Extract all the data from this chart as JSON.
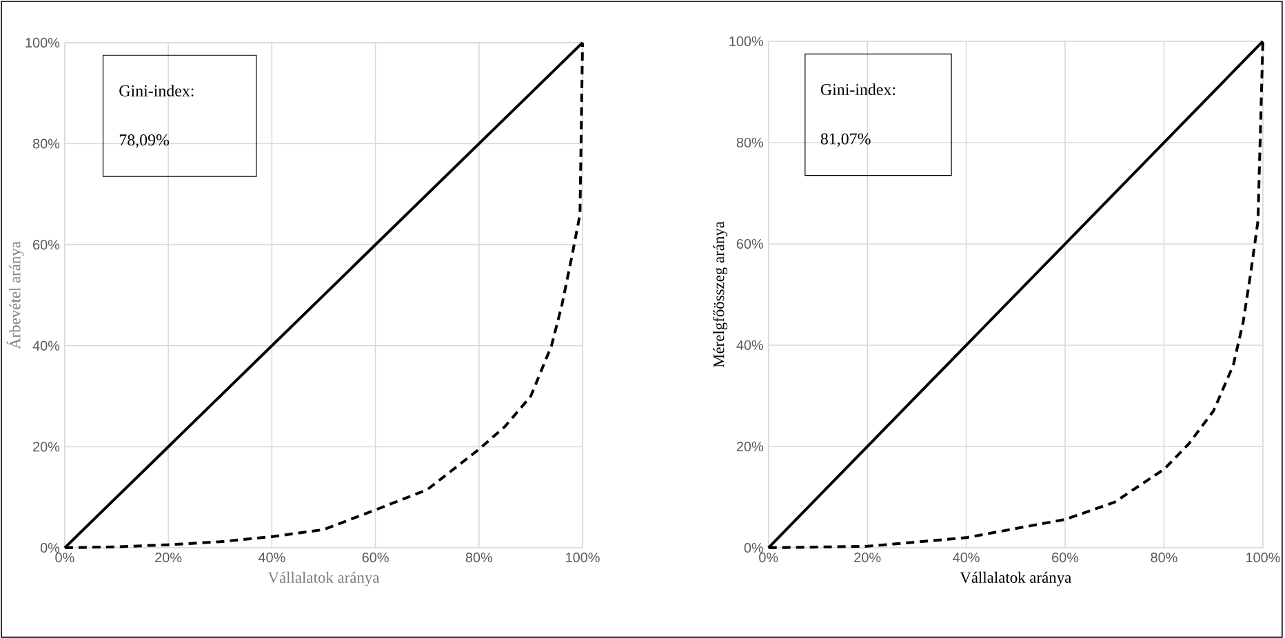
{
  "chart_data": [
    {
      "type": "line",
      "xlabel": "Vállalatok aránya",
      "ylabel": "Árbevétel aránya",
      "annotations": [
        "Gini-index:",
        "78,09%"
      ],
      "xlim": [
        0,
        100
      ],
      "ylim": [
        0,
        100
      ],
      "grid": true,
      "marker": "none",
      "xticks": [
        {
          "value": 0,
          "label": "0%"
        },
        {
          "value": 20,
          "label": "20%"
        },
        {
          "value": 40,
          "label": "40%"
        },
        {
          "value": 60,
          "label": "60%"
        },
        {
          "value": 80,
          "label": "80%"
        },
        {
          "value": 100,
          "label": "100%"
        }
      ],
      "yticks": [
        {
          "value": 0,
          "label": "0%"
        },
        {
          "value": 20,
          "label": "20%"
        },
        {
          "value": 40,
          "label": "40%"
        },
        {
          "value": 60,
          "label": "60%"
        },
        {
          "value": 80,
          "label": "80%"
        },
        {
          "value": 100,
          "label": "100%"
        }
      ],
      "series": [
        {
          "color": "#000000",
          "line_style": "solid",
          "x": [
            0,
            100
          ],
          "values": [
            0,
            100
          ]
        },
        {
          "color": "#000000",
          "line_style": "dashed",
          "x": [
            0,
            10,
            20,
            30,
            40,
            50,
            60,
            70,
            80,
            85,
            90,
            94,
            96,
            98,
            99.5,
            100
          ],
          "values": [
            0,
            0.2,
            0.6,
            1.2,
            2.2,
            3.6,
            7.5,
            11.5,
            19.5,
            24,
            30,
            40,
            48,
            58,
            66,
            100
          ]
        }
      ]
    },
    {
      "type": "line",
      "xlabel": "Vállalatok aránya",
      "ylabel": "Mérelgfőösszeg aránya",
      "annotations": [
        "Gini-index:",
        "81,07%"
      ],
      "xlim": [
        0,
        100
      ],
      "ylim": [
        0,
        100
      ],
      "grid": true,
      "marker": "none",
      "xticks": [
        {
          "value": 0,
          "label": "0%"
        },
        {
          "value": 20,
          "label": "20%"
        },
        {
          "value": 40,
          "label": "40%"
        },
        {
          "value": 60,
          "label": "60%"
        },
        {
          "value": 80,
          "label": "80%"
        },
        {
          "value": 100,
          "label": "100%"
        }
      ],
      "yticks": [
        {
          "value": 0,
          "label": "0%"
        },
        {
          "value": 20,
          "label": "20%"
        },
        {
          "value": 40,
          "label": "40%"
        },
        {
          "value": 60,
          "label": "60%"
        },
        {
          "value": 80,
          "label": "80%"
        },
        {
          "value": 100,
          "label": "100%"
        }
      ],
      "series": [
        {
          "color": "#000000",
          "line_style": "solid",
          "x": [
            0,
            100
          ],
          "values": [
            0,
            100
          ]
        },
        {
          "color": "#000000",
          "line_style": "dashed",
          "x": [
            0,
            20,
            40,
            60,
            70,
            80,
            85,
            90,
            94,
            96,
            97.5,
            99,
            100
          ],
          "values": [
            0,
            0.3,
            2,
            5.6,
            9,
            15.5,
            20.5,
            27,
            36,
            44.5,
            54,
            64.5,
            100
          ]
        }
      ]
    }
  ]
}
